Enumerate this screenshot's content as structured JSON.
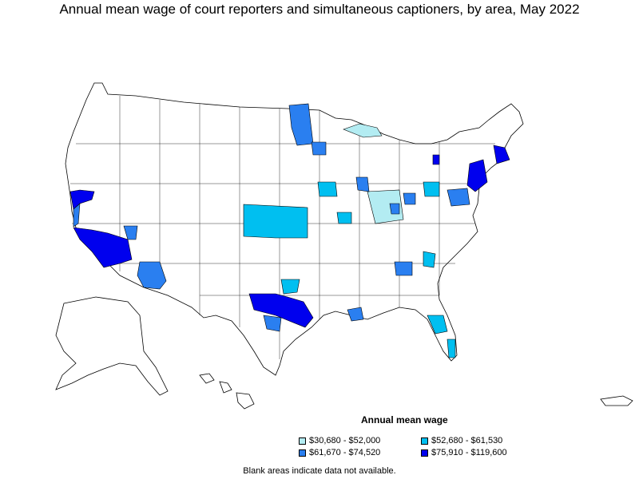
{
  "title": "Annual mean wage of court reporters and simultaneous captioners, by area, May 2022",
  "legend": {
    "title": "Annual mean wage",
    "items": [
      {
        "label": "$30,680 - $52,000",
        "color": "#b3ecf2"
      },
      {
        "label": "$52,680 - $61,530",
        "color": "#00bff0"
      },
      {
        "label": "$61,670 - $74,520",
        "color": "#2a7ff0"
      },
      {
        "label": "$75,910 - $119,600",
        "color": "#0000ee"
      }
    ]
  },
  "note": "Blank areas indicate data not available."
}
